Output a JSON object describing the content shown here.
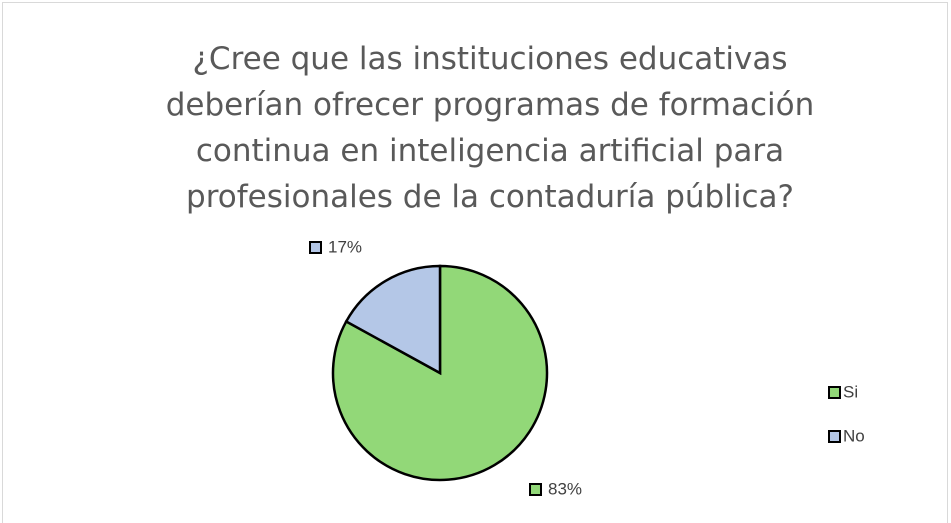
{
  "chart_data": {
    "type": "pie",
    "title": "¿Cree que las instituciones educativas deberían ofrecer programas de formación continua en inteligencia artificial para profesionales de la contaduría pública?",
    "categories": [
      "Si",
      "No"
    ],
    "values": [
      83,
      17
    ],
    "value_labels": [
      "83%",
      "17%"
    ],
    "colors": [
      "#92d878",
      "#b4c7e7"
    ],
    "legend": "right"
  }
}
